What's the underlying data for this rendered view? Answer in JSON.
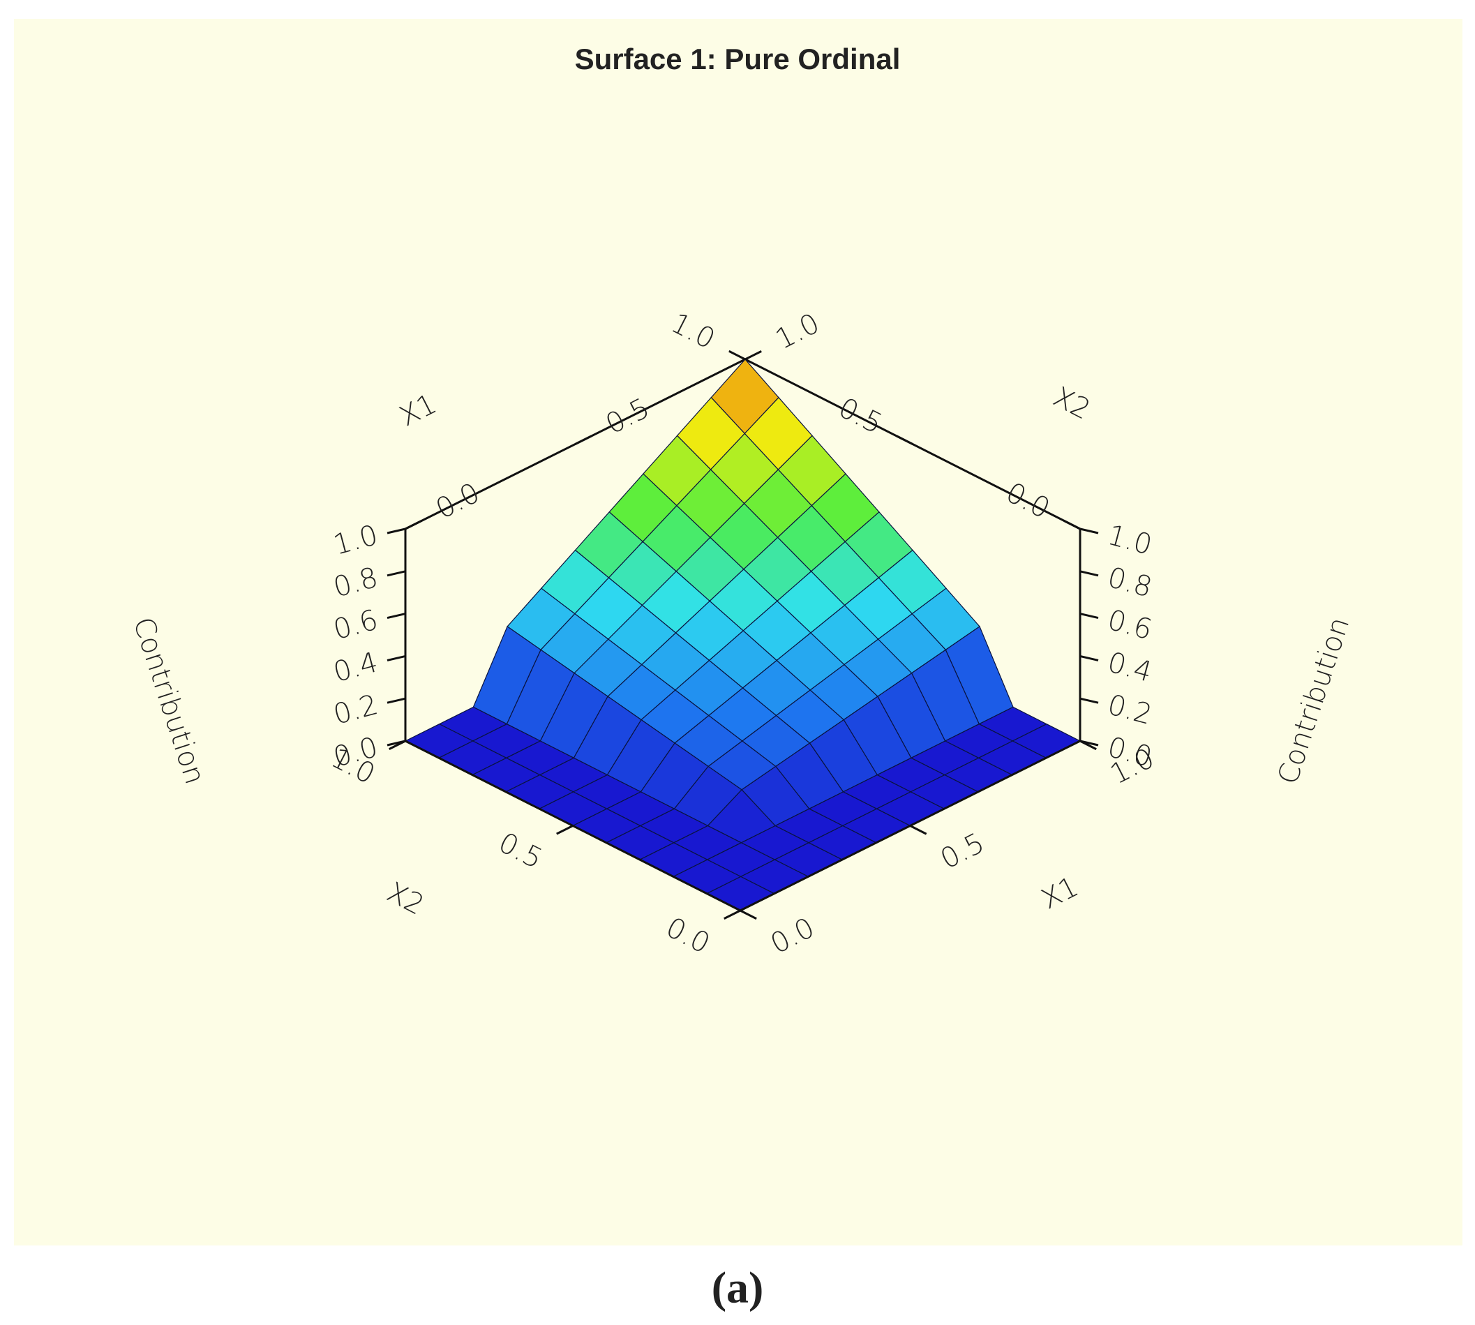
{
  "chart_data": {
    "type": "surface",
    "title": "Surface 1: Pure Ordinal",
    "xlabel": "X1",
    "ylabel": "X2",
    "zlabel": "Contribution",
    "x1": [
      0,
      0.1,
      0.2,
      0.3,
      0.4,
      0.5,
      0.6,
      0.7,
      0.8,
      0.9,
      1
    ],
    "x2": [
      0,
      0.1,
      0.2,
      0.3,
      0.4,
      0.5,
      0.6,
      0.7,
      0.8,
      0.9,
      1
    ],
    "z": [
      [
        0,
        0,
        0,
        0,
        0,
        0,
        0,
        0,
        0,
        0,
        0
      ],
      [
        0,
        0,
        0,
        0,
        0,
        0,
        0,
        0,
        0,
        0,
        0
      ],
      [
        0,
        0,
        0,
        0,
        0,
        0,
        0,
        0,
        0,
        0,
        0
      ],
      [
        0,
        0,
        0,
        0.09,
        0.12,
        0.15,
        0.18,
        0.21,
        0.24,
        0.27,
        0.3
      ],
      [
        0,
        0,
        0,
        0.12,
        0.16,
        0.2,
        0.24,
        0.28,
        0.32,
        0.36,
        0.4
      ],
      [
        0,
        0,
        0,
        0.15,
        0.2,
        0.25,
        0.3,
        0.35,
        0.4,
        0.45,
        0.5
      ],
      [
        0,
        0,
        0,
        0.18,
        0.24,
        0.3,
        0.36,
        0.42,
        0.48,
        0.54,
        0.6
      ],
      [
        0,
        0,
        0,
        0.21,
        0.28,
        0.35,
        0.42,
        0.49,
        0.56,
        0.63,
        0.7
      ],
      [
        0,
        0,
        0,
        0.24,
        0.32,
        0.4,
        0.48,
        0.56,
        0.64,
        0.72,
        0.8
      ],
      [
        0,
        0,
        0,
        0.27,
        0.36,
        0.45,
        0.54,
        0.63,
        0.72,
        0.81,
        0.9
      ],
      [
        0,
        0,
        0,
        0.3,
        0.4,
        0.5,
        0.6,
        0.7,
        0.8,
        0.9,
        1
      ]
    ],
    "xlim": [
      0,
      1
    ],
    "ylim": [
      0,
      1
    ],
    "zlim": [
      0,
      1
    ],
    "xticks": [
      {
        "value": 0,
        "label": "0.0"
      },
      0.5,
      {
        "value": 1,
        "label": "1.0"
      }
    ],
    "yticks": [
      {
        "value": 0,
        "label": "0.0"
      },
      0.5,
      {
        "value": 1,
        "label": "1.0"
      }
    ],
    "zticks": [
      {
        "value": 0,
        "label": "0.0"
      },
      0.2,
      0.4,
      0.6,
      0.8,
      {
        "value": 1,
        "label": "1.0"
      }
    ],
    "colorscale": [
      "#1818d0",
      "#1e78f0",
      "#30e0f0",
      "#50ee40",
      "#eeee10",
      "#f07a10"
    ],
    "background": "#fdfde6"
  },
  "caption": "(a)"
}
